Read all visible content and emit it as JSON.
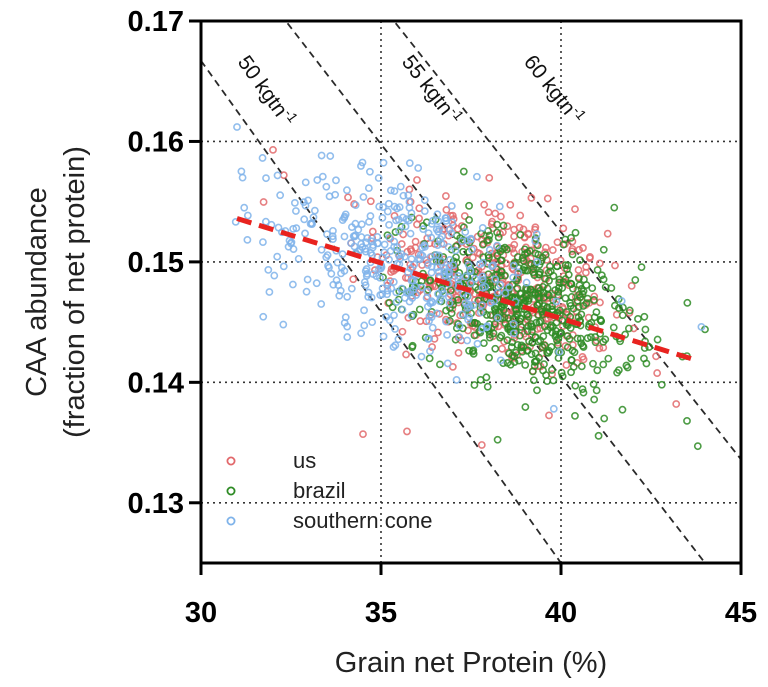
{
  "chart_data": {
    "type": "scatter",
    "xlabel": "Grain net Protein (%)",
    "ylabel_lines": [
      "CAA abundance",
      "(fraction of net protein)"
    ],
    "xlim": [
      30,
      45
    ],
    "ylim": [
      0.125,
      0.17
    ],
    "x_ticks": [
      {
        "value": 30,
        "label": "30"
      },
      {
        "value": 35,
        "label": "35"
      },
      {
        "value": 40,
        "label": "40"
      },
      {
        "value": 45,
        "label": "45"
      }
    ],
    "y_ticks": [
      {
        "value": 0.13,
        "label": "0.13"
      },
      {
        "value": 0.14,
        "label": "0.14"
      },
      {
        "value": 0.15,
        "label": "0.15"
      },
      {
        "value": 0.16,
        "label": "0.16"
      },
      {
        "value": 0.17,
        "label": "0.17"
      }
    ],
    "grid": "dotted",
    "legend_position": "bottom-left",
    "series": [
      {
        "name": "us",
        "color": "#e2686b",
        "center": [
          38.2,
          0.1482
        ],
        "spread": [
          1.6,
          0.0034
        ],
        "slope": -0.0008,
        "count": 420,
        "extra_points": [
          [
            32.0,
            0.1593
          ],
          [
            32.3,
            0.1572
          ],
          [
            34.5,
            0.1357
          ],
          [
            37.8,
            0.1348
          ],
          [
            43.2,
            0.1382
          ],
          [
            41.5,
            0.1497
          ],
          [
            36.0,
            0.1568
          ]
        ]
      },
      {
        "name": "brazil",
        "color": "#2e8b25",
        "center": [
          39.0,
          0.1462
        ],
        "spread": [
          1.5,
          0.003
        ],
        "slope": -0.0008,
        "count": 560,
        "extra_points": [
          [
            43.8,
            0.1347
          ],
          [
            43.5,
            0.1368
          ],
          [
            42.8,
            0.1398
          ],
          [
            37.3,
            0.1575
          ],
          [
            44.0,
            0.1444
          ],
          [
            41.2,
            0.137
          ]
        ]
      },
      {
        "name": "southern cone",
        "color": "#7fb3ea",
        "center": [
          35.6,
          0.1502
        ],
        "spread": [
          1.9,
          0.0033
        ],
        "slope": -0.0008,
        "count": 380,
        "extra_points": [
          [
            31.0,
            0.1612
          ],
          [
            31.2,
            0.1545
          ],
          [
            31.9,
            0.1475
          ],
          [
            35.8,
            0.1582
          ],
          [
            39.8,
            0.1378
          ],
          [
            43.9,
            0.1446
          ]
        ]
      }
    ],
    "trendline": {
      "x": [
        31.0,
        43.8
      ],
      "y": [
        0.1536,
        0.1418
      ],
      "color": "#e8231f",
      "style": "dashed"
    },
    "isolines": [
      {
        "label": "50 kgtn",
        "superscript": "-1",
        "x": [
          30.0,
          40.0
        ],
        "y": [
          0.1667,
          0.125
        ]
      },
      {
        "label": "55 kgtn",
        "superscript": "-1",
        "x": [
          32.2,
          44.0
        ],
        "y": [
          0.1706,
          0.125
        ]
      },
      {
        "label": "60 kgtn",
        "superscript": "-1",
        "x": [
          35.2,
          45.0
        ],
        "y": [
          0.1706,
          0.1336
        ]
      }
    ]
  }
}
